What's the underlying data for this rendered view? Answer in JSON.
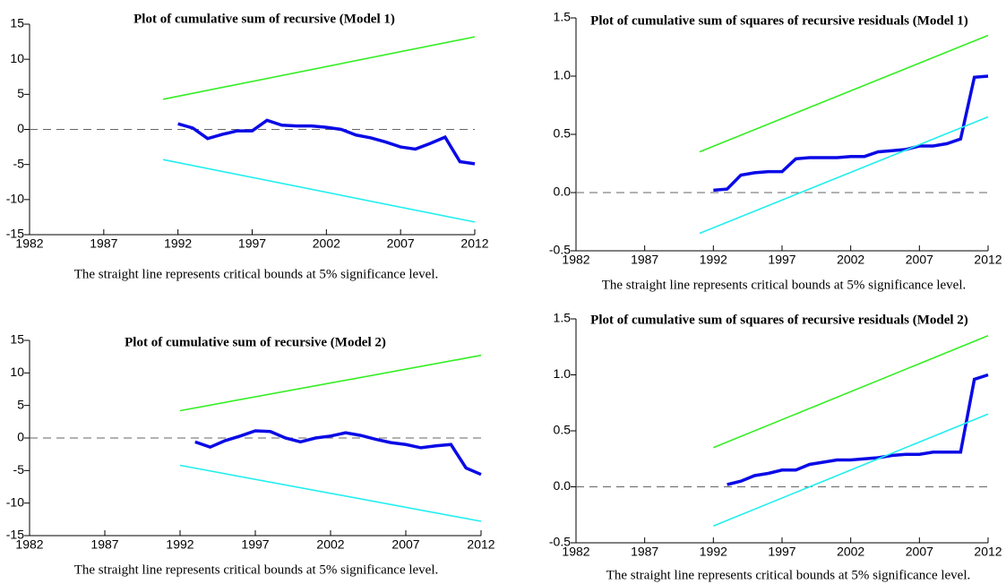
{
  "chart_data": [
    {
      "type": "line",
      "title": "Plot of cumulative sum of recursive (Model 1)",
      "caption": "The straight line represents critical bounds at 5% significance level.",
      "xlim": [
        1982,
        2012
      ],
      "xticks": [
        1982,
        1987,
        1992,
        1997,
        2002,
        2007,
        2012
      ],
      "ylim": [
        -15,
        15
      ],
      "yticks": [
        -15,
        -10,
        -5,
        0,
        5,
        10,
        15
      ],
      "zero_line": 0,
      "series": [
        {
          "color": "#0a0ae6",
          "x": [
            1992,
            1993,
            1994,
            1995,
            1996,
            1997,
            1998,
            1999,
            2000,
            2001,
            2002,
            2003,
            2004,
            2005,
            2006,
            2007,
            2008,
            2009,
            2010,
            2011,
            2012
          ],
          "values": [
            0.8,
            0.2,
            -1.3,
            -0.7,
            -0.2,
            -0.2,
            1.3,
            0.6,
            0.5,
            0.5,
            0.3,
            0.0,
            -0.8,
            -1.2,
            -1.8,
            -2.5,
            -2.8,
            -2.0,
            -1.1,
            -4.6,
            -4.9
          ]
        },
        {
          "color": "#33ee22",
          "x": [
            1991,
            2012
          ],
          "values": [
            4.3,
            13.2
          ]
        },
        {
          "color": "#22eeee",
          "x": [
            1991,
            2012
          ],
          "values": [
            -4.3,
            -13.2
          ]
        }
      ]
    },
    {
      "type": "line",
      "title": "Plot of cumulative sum of squares of recursive residuals (Model 1)",
      "caption": "The straight line represents critical bounds at 5% significance level.",
      "xlim": [
        1982,
        2012
      ],
      "xticks": [
        1982,
        1987,
        1992,
        1997,
        2002,
        2007,
        2012
      ],
      "ylim": [
        -0.5,
        1.5
      ],
      "yticks": [
        -0.5,
        {
          "value": 0,
          "label": "0.0"
        },
        0.5,
        {
          "value": 1,
          "label": "1.0"
        },
        1.5
      ],
      "zero_line": 0,
      "series": [
        {
          "color": "#0a0ae6",
          "x": [
            1992,
            1993,
            1994,
            1995,
            1996,
            1997,
            1998,
            1999,
            2000,
            2001,
            2002,
            2003,
            2004,
            2005,
            2006,
            2007,
            2008,
            2009,
            2010,
            2011,
            2012
          ],
          "values": [
            0.02,
            0.03,
            0.15,
            0.17,
            0.18,
            0.18,
            0.29,
            0.3,
            0.3,
            0.3,
            0.31,
            0.31,
            0.35,
            0.36,
            0.37,
            0.4,
            0.4,
            0.42,
            0.46,
            0.99,
            1.0
          ]
        },
        {
          "color": "#33ee22",
          "x": [
            1991,
            2012
          ],
          "values": [
            0.35,
            1.35
          ]
        },
        {
          "color": "#22eeee",
          "x": [
            1991,
            2012
          ],
          "values": [
            -0.35,
            0.65
          ]
        }
      ]
    },
    {
      "type": "line",
      "title": "Plot of cumulative sum of recursive (Model 2)",
      "caption": "The straight line represents critical bounds at 5% significance level.",
      "xlim": [
        1982,
        2012
      ],
      "xticks": [
        1982,
        1987,
        1992,
        1997,
        2002,
        2007,
        2012
      ],
      "ylim": [
        -15,
        15
      ],
      "yticks": [
        -15,
        -10,
        -5,
        0,
        5,
        10,
        15
      ],
      "zero_line": 0,
      "series": [
        {
          "color": "#0a0ae6",
          "x": [
            1993,
            1994,
            1995,
            1996,
            1997,
            1998,
            1999,
            2000,
            2001,
            2002,
            2003,
            2004,
            2005,
            2006,
            2007,
            2008,
            2009,
            2010,
            2011,
            2012
          ],
          "values": [
            -0.6,
            -1.4,
            -0.4,
            0.3,
            1.1,
            1.0,
            0.0,
            -0.6,
            0.0,
            0.3,
            0.8,
            0.4,
            -0.2,
            -0.7,
            -1.0,
            -1.5,
            -1.2,
            -1.0,
            -4.6,
            -5.6
          ]
        },
        {
          "color": "#33ee22",
          "x": [
            1992,
            2012
          ],
          "values": [
            4.2,
            12.7
          ]
        },
        {
          "color": "#22eeee",
          "x": [
            1992,
            2012
          ],
          "values": [
            -4.2,
            -12.8
          ]
        }
      ]
    },
    {
      "type": "line",
      "title": "Plot of cumulative sum of squares of recursive residuals (Model 2)",
      "caption": "The straight line represents critical bounds at 5% significance level.",
      "xlim": [
        1982,
        2012
      ],
      "xticks": [
        1982,
        1987,
        1992,
        1997,
        2002,
        2007,
        2012
      ],
      "ylim": [
        -0.5,
        1.5
      ],
      "yticks": [
        -0.5,
        {
          "value": 0,
          "label": "0.0"
        },
        0.5,
        {
          "value": 1,
          "label": "1.0"
        },
        1.5
      ],
      "zero_line": 0,
      "series": [
        {
          "color": "#0a0ae6",
          "x": [
            1993,
            1994,
            1995,
            1996,
            1997,
            1998,
            1999,
            2000,
            2001,
            2002,
            2003,
            2004,
            2005,
            2006,
            2007,
            2008,
            2009,
            2010,
            2011,
            2012
          ],
          "values": [
            0.02,
            0.05,
            0.1,
            0.12,
            0.15,
            0.15,
            0.2,
            0.22,
            0.24,
            0.24,
            0.25,
            0.26,
            0.28,
            0.29,
            0.29,
            0.31,
            0.31,
            0.31,
            0.96,
            1.0
          ]
        },
        {
          "color": "#33ee22",
          "x": [
            1992,
            2012
          ],
          "values": [
            0.35,
            1.35
          ]
        },
        {
          "color": "#22eeee",
          "x": [
            1992,
            2012
          ],
          "values": [
            -0.35,
            0.65
          ]
        }
      ]
    }
  ]
}
